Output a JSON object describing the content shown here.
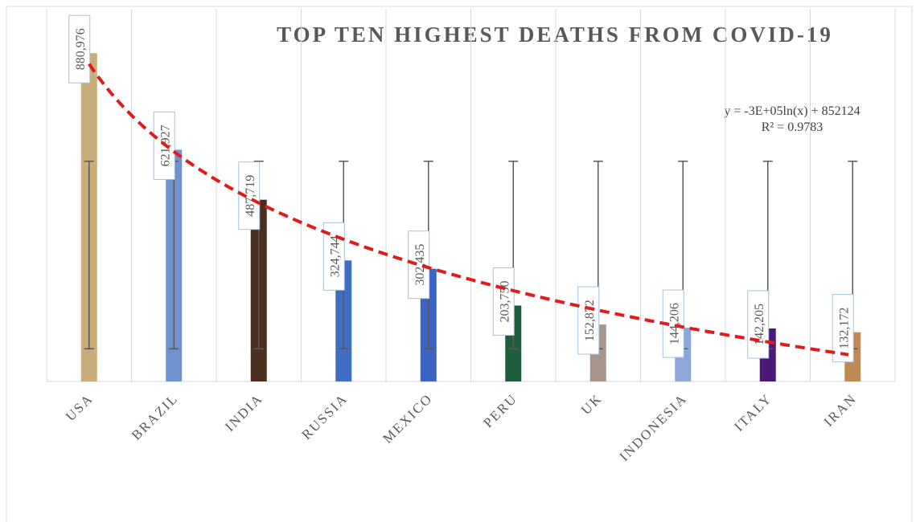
{
  "chart_data": {
    "type": "bar",
    "title": "TOP TEN HIGHEST DEATHS FROM COVID-19",
    "categories": [
      "USA",
      "BRAZIL",
      "INDIA",
      "RUSSIA",
      "MEXICO",
      "PERU",
      "UK",
      "INDONESIA",
      "ITALY",
      "IRAN"
    ],
    "values": [
      880976,
      621927,
      487719,
      324744,
      302435,
      203750,
      152872,
      144206,
      142205,
      132172
    ],
    "value_labels": [
      "880,976",
      "621,927",
      "487,719",
      "324,744",
      "302,435",
      "203,750",
      "152,872",
      "144,206",
      "142,205",
      "132,172"
    ],
    "colors": [
      "#c9ad78",
      "#6f93cf",
      "#4a2f1f",
      "#3f6fc0",
      "#3a63c4",
      "#1f5e3c",
      "#a8958a",
      "#8ea7d9",
      "#4b1a78",
      "#c08a55"
    ],
    "ylim": [
      0,
      1000000
    ],
    "grid": true,
    "error_bars": "standard deviation",
    "trendline": {
      "type": "log",
      "color": "#e31a1a",
      "equation": "y = -3E+05ln(x) + 852124",
      "r_squared": "R² = 0.9783"
    }
  }
}
